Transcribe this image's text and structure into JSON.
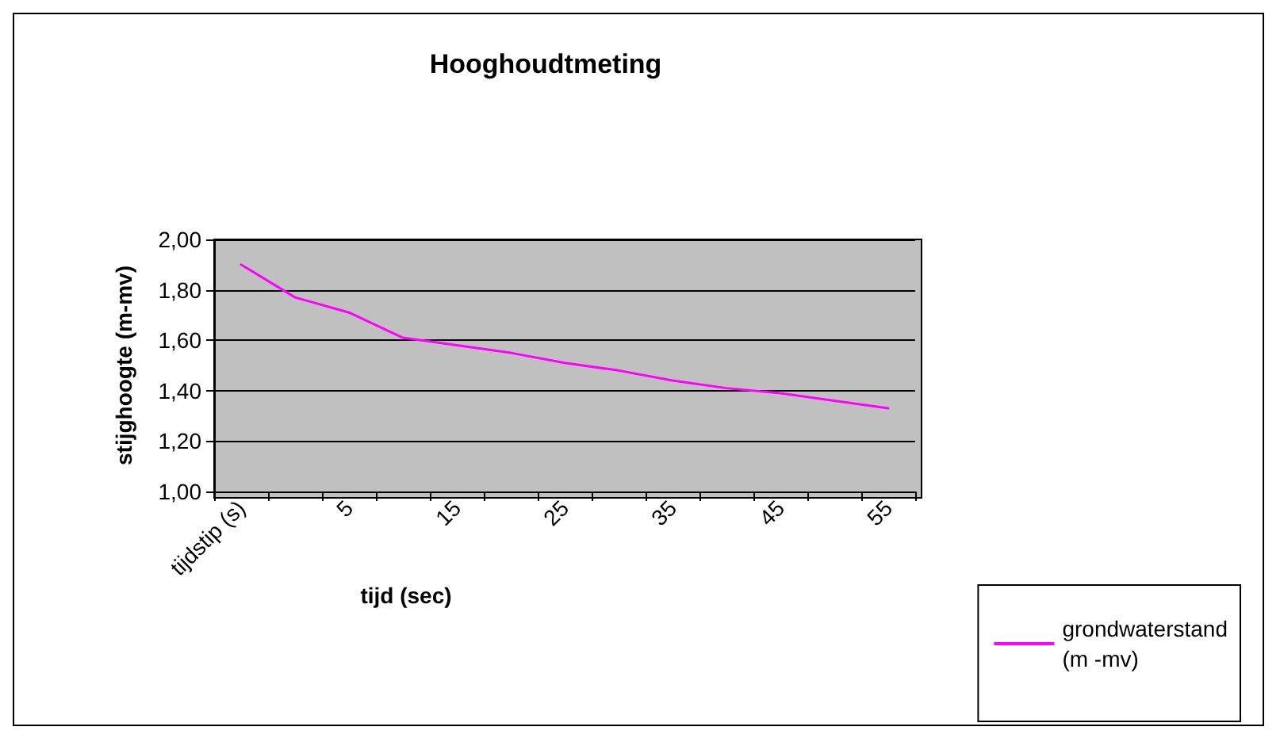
{
  "chart_data": {
    "type": "line",
    "title": "Hooghoudtmeting",
    "xlabel": "tijd (sec)",
    "ylabel": "stijghoogte (m-mv)",
    "categories": [
      "tijdstip (s)",
      null,
      "5",
      null,
      "15",
      null,
      "25",
      null,
      "35",
      null,
      "45",
      null,
      "55"
    ],
    "series": [
      {
        "name": "grondwaterstand (m -mv)",
        "color": "#ff00ff",
        "values": [
          1.9,
          1.77,
          1.71,
          1.61,
          1.58,
          1.55,
          1.51,
          1.48,
          1.44,
          1.41,
          1.39,
          1.36,
          1.33
        ]
      }
    ],
    "ylim": [
      1.0,
      2.0
    ],
    "yticks": [
      {
        "value": 1.0,
        "label": "1,00"
      },
      {
        "value": 1.2,
        "label": "1,20"
      },
      {
        "value": 1.4,
        "label": "1,40"
      },
      {
        "value": 1.6,
        "label": "1,60"
      },
      {
        "value": 1.8,
        "label": "1,80"
      },
      {
        "value": 2.0,
        "label": "2,00"
      }
    ],
    "grid": "y",
    "legend": "bottom right",
    "marker": "none",
    "line_style": "solid"
  }
}
